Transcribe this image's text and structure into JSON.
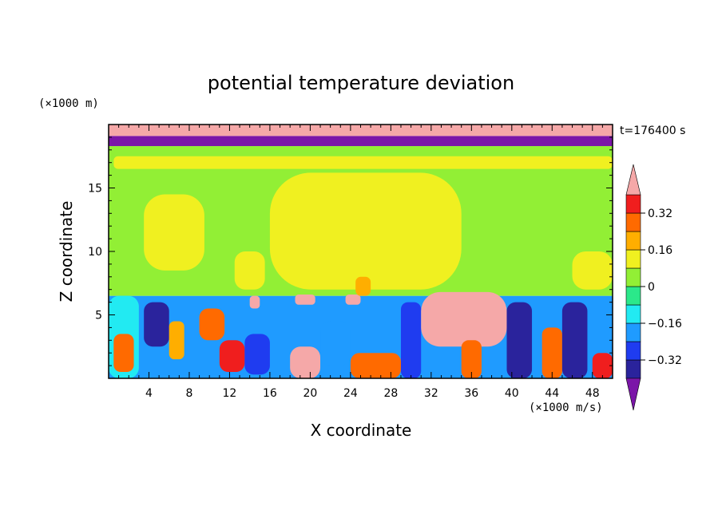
{
  "chart_data": {
    "type": "heatmap",
    "title": "potential temperature deviation",
    "xlabel": "X coordinate",
    "ylabel": "Z coordinate",
    "x_unit": "(×1000 m/s)",
    "y_unit": "(×1000 m)",
    "time_label": "t=176400 s",
    "xlim": [
      0,
      50
    ],
    "ylim": [
      0,
      20
    ],
    "x_ticks": [
      4,
      8,
      12,
      16,
      20,
      24,
      28,
      32,
      36,
      40,
      44,
      48
    ],
    "y_ticks": [
      5,
      10,
      15
    ],
    "colorbar": {
      "levels": [
        -0.4,
        -0.32,
        -0.24,
        -0.16,
        -0.08,
        0,
        0.08,
        0.16,
        0.24,
        0.32,
        0.4
      ],
      "labels": [
        {
          "value": 0.32,
          "text": "0.32"
        },
        {
          "value": 0.16,
          "text": "0.16"
        },
        {
          "value": 0,
          "text": "0"
        },
        {
          "value": -0.16,
          "text": "−0.16"
        },
        {
          "value": -0.32,
          "text": "−0.32"
        }
      ],
      "colors": [
        "#7b16a8",
        "#2a239c",
        "#1f3cf0",
        "#1f9bff",
        "#22eaf2",
        "#2be88a",
        "#92ef35",
        "#f0f020",
        "#ffae00",
        "#ff6a00",
        "#f01e1e",
        "#f5a8a8"
      ]
    },
    "regions": [
      {
        "x0": 0,
        "x1": 50,
        "y0": 0,
        "y1": 6.5,
        "value": -0.2
      },
      {
        "x0": 0,
        "x1": 50,
        "y0": 6.5,
        "y1": 18.3,
        "value": 0.03
      },
      {
        "x0": 0,
        "x1": 50,
        "y0": 18.3,
        "y1": 19.1,
        "value": -0.45
      },
      {
        "x0": 0,
        "x1": 50,
        "y0": 19.1,
        "y1": 20,
        "value": 0.45
      },
      {
        "x0": 3.5,
        "x1": 9.5,
        "y0": 8.5,
        "y1": 14.5,
        "value": 0.1
      },
      {
        "x0": 16,
        "x1": 35,
        "y0": 7,
        "y1": 16.2,
        "value": 0.1
      },
      {
        "x0": 12.5,
        "x1": 15.5,
        "y0": 7,
        "y1": 10,
        "value": 0.1
      },
      {
        "x0": 46,
        "x1": 50,
        "y0": 7,
        "y1": 10,
        "value": 0.1
      },
      {
        "x0": 0.5,
        "x1": 50,
        "y0": 16.5,
        "y1": 17.5,
        "value": 0.1
      },
      {
        "x0": 0,
        "x1": 3,
        "y0": 0,
        "y1": 6.5,
        "value": -0.1
      },
      {
        "x0": 0.5,
        "x1": 2.5,
        "y0": 0.5,
        "y1": 3.5,
        "value": 0.25
      },
      {
        "x0": 3.5,
        "x1": 6,
        "y0": 2.5,
        "y1": 6,
        "value": -0.35
      },
      {
        "x0": 6,
        "x1": 7.5,
        "y0": 1.5,
        "y1": 4.5,
        "value": 0.18
      },
      {
        "x0": 9,
        "x1": 11.5,
        "y0": 3,
        "y1": 5.5,
        "value": 0.28
      },
      {
        "x0": 11,
        "x1": 13.5,
        "y0": 0.5,
        "y1": 3,
        "value": 0.35
      },
      {
        "x0": 13.5,
        "x1": 16,
        "y0": 0.3,
        "y1": 3.5,
        "value": -0.3
      },
      {
        "x0": 18,
        "x1": 21,
        "y0": 0,
        "y1": 2.5,
        "value": 0.4
      },
      {
        "x0": 21,
        "x1": 24,
        "y0": 1,
        "y1": 4.5,
        "value": -0.2
      },
      {
        "x0": 24,
        "x1": 29,
        "y0": 0,
        "y1": 2,
        "value": 0.25
      },
      {
        "x0": 29,
        "x1": 31,
        "y0": 0,
        "y1": 6,
        "value": -0.25
      },
      {
        "x0": 31,
        "x1": 39.5,
        "y0": 2.5,
        "y1": 6.8,
        "value": 0.45
      },
      {
        "x0": 35,
        "x1": 37,
        "y0": 0,
        "y1": 3,
        "value": 0.3
      },
      {
        "x0": 39.5,
        "x1": 42,
        "y0": 0,
        "y1": 6,
        "value": -0.35
      },
      {
        "x0": 43,
        "x1": 45,
        "y0": 0,
        "y1": 4,
        "value": 0.3
      },
      {
        "x0": 45,
        "x1": 47.5,
        "y0": 0,
        "y1": 6,
        "value": -0.38
      },
      {
        "x0": 48,
        "x1": 50,
        "y0": 0,
        "y1": 2,
        "value": 0.35
      },
      {
        "x0": 14,
        "x1": 15,
        "y0": 5.5,
        "y1": 6.5,
        "value": 0.45
      },
      {
        "x0": 18.5,
        "x1": 20.5,
        "y0": 5.8,
        "y1": 6.6,
        "value": 0.45
      },
      {
        "x0": 23.5,
        "x1": 25,
        "y0": 5.8,
        "y1": 6.6,
        "value": 0.45
      },
      {
        "x0": 24.5,
        "x1": 26,
        "y0": 6.5,
        "y1": 8,
        "value": 0.2
      }
    ]
  }
}
